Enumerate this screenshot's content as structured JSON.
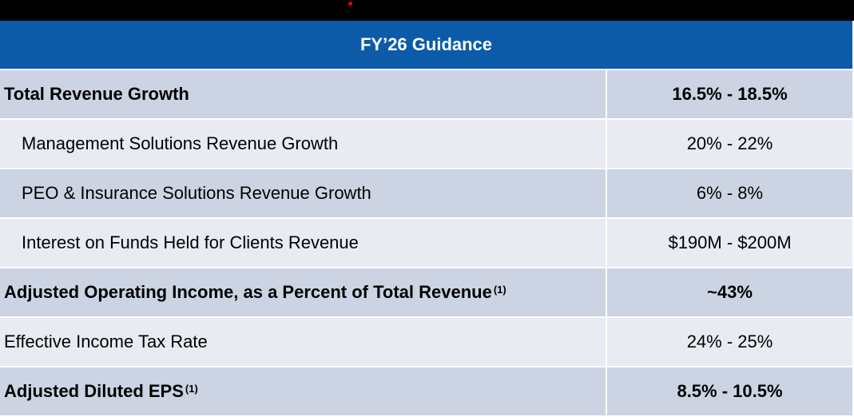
{
  "header": {
    "title": "FY’26 Guidance"
  },
  "table": {
    "rows": [
      {
        "label": "Total Revenue Growth",
        "value": "16.5% - 18.5%",
        "bold": true,
        "indent": false
      },
      {
        "label": "Management Solutions Revenue Growth",
        "value": "20% - 22%",
        "bold": false,
        "indent": true
      },
      {
        "label": "PEO & Insurance Solutions Revenue Growth",
        "value": "6% - 8%",
        "bold": false,
        "indent": true
      },
      {
        "label": "Interest on Funds Held for Clients Revenue",
        "value": "$190M - $200M",
        "bold": false,
        "indent": true
      },
      {
        "label": "Adjusted Operating Income, as a Percent of Total Revenue",
        "note": "(1)",
        "value": "~43%",
        "bold": true,
        "indent": false
      },
      {
        "label": "Effective Income Tax Rate",
        "value": "24% - 25%",
        "bold": false,
        "indent": false
      },
      {
        "label": "Adjusted Diluted EPS ",
        "note": "(1)",
        "value": "8.5% - 10.5%",
        "bold": true,
        "indent": false
      }
    ]
  }
}
